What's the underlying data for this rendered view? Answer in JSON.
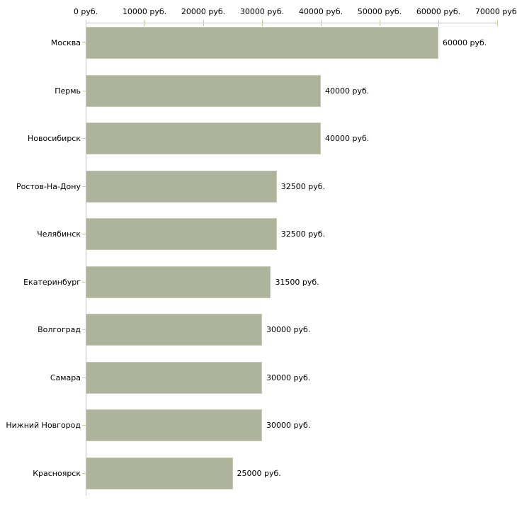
{
  "chart_data": {
    "type": "bar",
    "orientation": "horizontal",
    "title": "",
    "xlabel": "",
    "ylabel": "",
    "unit": "руб.",
    "xlim": [
      0,
      70000
    ],
    "grid": false,
    "legend": false,
    "categories": [
      "Москва",
      "Пермь",
      "Новосибирск",
      "Ростов-На-Дону",
      "Челябинск",
      "Екатеринбург",
      "Волгоград",
      "Самара",
      "Нижний Новгород",
      "Красноярск"
    ],
    "values": [
      60000,
      40000,
      40000,
      32500,
      32500,
      31500,
      30000,
      30000,
      30000,
      25000
    ],
    "value_labels": [
      "60000 руб.",
      "40000 руб.",
      "40000 руб.",
      "32500 руб.",
      "32500 руб.",
      "31500 руб.",
      "30000 руб.",
      "30000 руб.",
      "30000 руб.",
      "25000 руб."
    ],
    "x_ticks": [
      {
        "value": 0,
        "label": "0 руб."
      },
      {
        "value": 10000,
        "label": "10000 руб."
      },
      {
        "value": 20000,
        "label": "20000 руб."
      },
      {
        "value": 30000,
        "label": "30000 руб."
      },
      {
        "value": 40000,
        "label": "40000 руб."
      },
      {
        "value": 50000,
        "label": "50000 руб."
      },
      {
        "value": 60000,
        "label": "60000 руб."
      },
      {
        "value": 70000,
        "label": "70000 руб."
      }
    ],
    "colors": {
      "bar_fill": "#aeb39b",
      "bar_border": "#c5c8b2",
      "axis_line": "#c3c3c3",
      "tick_mark": "#c9cba1",
      "text": "#000000",
      "background": "#ffffff"
    }
  }
}
